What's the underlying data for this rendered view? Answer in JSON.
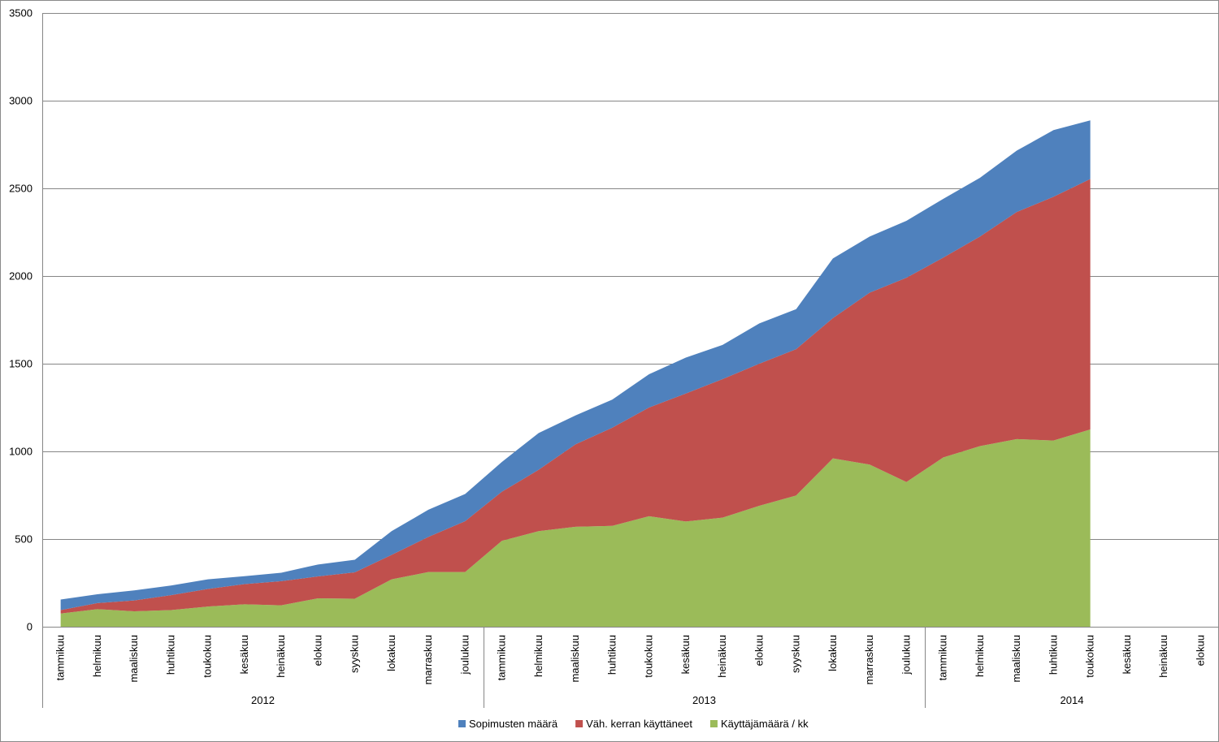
{
  "chart_data": {
    "type": "area",
    "stacked": true,
    "grid": true,
    "legend_position": "bottom",
    "ylim": [
      0,
      3500
    ],
    "yticks": [
      0,
      500,
      1000,
      1500,
      2000,
      2500,
      3000,
      3500
    ],
    "ytick_labels": [
      "0",
      "500",
      "1000",
      "1500",
      "2000",
      "2500",
      "3000",
      "3500"
    ],
    "categories": [
      "tammikuu",
      "helmikuu",
      "maaliskuu",
      "huhtikuu",
      "toukokuu",
      "kesäkuu",
      "heinäkuu",
      "elokuu",
      "syyskuu",
      "lokakuu",
      "marraskuu",
      "joulukuu",
      "tammikuu",
      "helmikuu",
      "maaliskuu",
      "huhtikuu",
      "toukokuu",
      "kesäkuu",
      "heinäkuu",
      "elokuu",
      "syyskuu",
      "lokakuu",
      "marraskuu",
      "joulukuu",
      "tammikuu",
      "helmikuu",
      "maaliskuu",
      "huhtikuu",
      "toukokuu",
      "kesäkuu",
      "heinäkuu",
      "elokuu"
    ],
    "groups": [
      {
        "label": "2012",
        "count": 12
      },
      {
        "label": "2013",
        "count": 12
      },
      {
        "label": "2014",
        "count": 8
      }
    ],
    "series": [
      {
        "name": "Käyttäjämäärä / kk",
        "color": "#9bbb59",
        "values": [
          75,
          100,
          88,
          95,
          115,
          128,
          122,
          162,
          160,
          270,
          312,
          312,
          490,
          545,
          570,
          575,
          630,
          600,
          622,
          690,
          748,
          960,
          925,
          825,
          965,
          1030,
          1070,
          1062,
          1125,
          null,
          null,
          null
        ]
      },
      {
        "name": "Väh. kerran käyttäneet",
        "color": "#c0504d",
        "values": [
          20,
          35,
          62,
          85,
          100,
          115,
          138,
          125,
          150,
          140,
          200,
          290,
          280,
          350,
          470,
          560,
          620,
          730,
          790,
          810,
          835,
          800,
          980,
          1165,
          1140,
          1195,
          1295,
          1390,
          1428,
          null,
          null,
          null
        ]
      },
      {
        "name": "Sopimusten määrä",
        "color": "#4f81bd",
        "values": [
          60,
          50,
          57,
          55,
          55,
          45,
          48,
          68,
          72,
          135,
          155,
          155,
          170,
          210,
          165,
          160,
          190,
          205,
          195,
          230,
          228,
          340,
          320,
          325,
          335,
          335,
          350,
          380,
          335,
          null,
          null,
          null
        ]
      }
    ],
    "legend_order": [
      "Sopimusten määrä",
      "Väh. kerran käyttäneet",
      "Käyttäjämäärä / kk"
    ]
  }
}
